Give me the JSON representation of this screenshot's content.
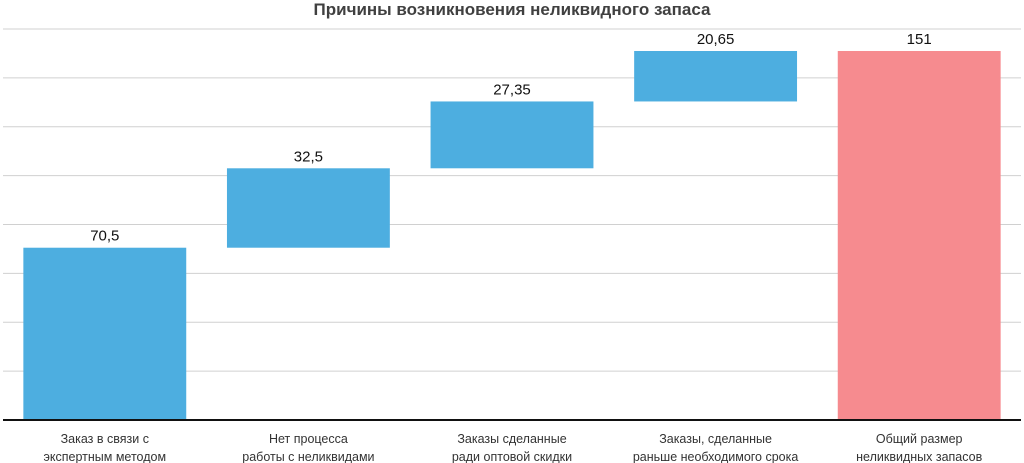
{
  "chart_data": {
    "type": "bar",
    "subtype": "waterfall",
    "title": "Причины возникновения неликвидного запаса",
    "xlabel": "",
    "ylabel": "",
    "ylim": [
      0,
      160
    ],
    "grid": true,
    "y_gridline_step": 20,
    "y_tick_labels_shown": false,
    "categories": [
      [
        "Заказ в связи с",
        "экспертным методом"
      ],
      [
        "Нет процесса",
        "работы с неликвидами"
      ],
      [
        "Заказы сделанные",
        "ради оптовой скидки"
      ],
      [
        "Заказы, сделанные",
        "раньше необходимого срока"
      ],
      [
        "Общий размер",
        "неликвидных запасов"
      ]
    ],
    "values": [
      70.5,
      32.5,
      27.35,
      20.65,
      151
    ],
    "value_labels": [
      "70,5",
      "32,5",
      "27,35",
      "20,65",
      "151"
    ],
    "kinds": [
      "increase",
      "increase",
      "increase",
      "increase",
      "total"
    ],
    "colors": {
      "increase": "#4daee0",
      "total": "#f68b8f"
    }
  }
}
